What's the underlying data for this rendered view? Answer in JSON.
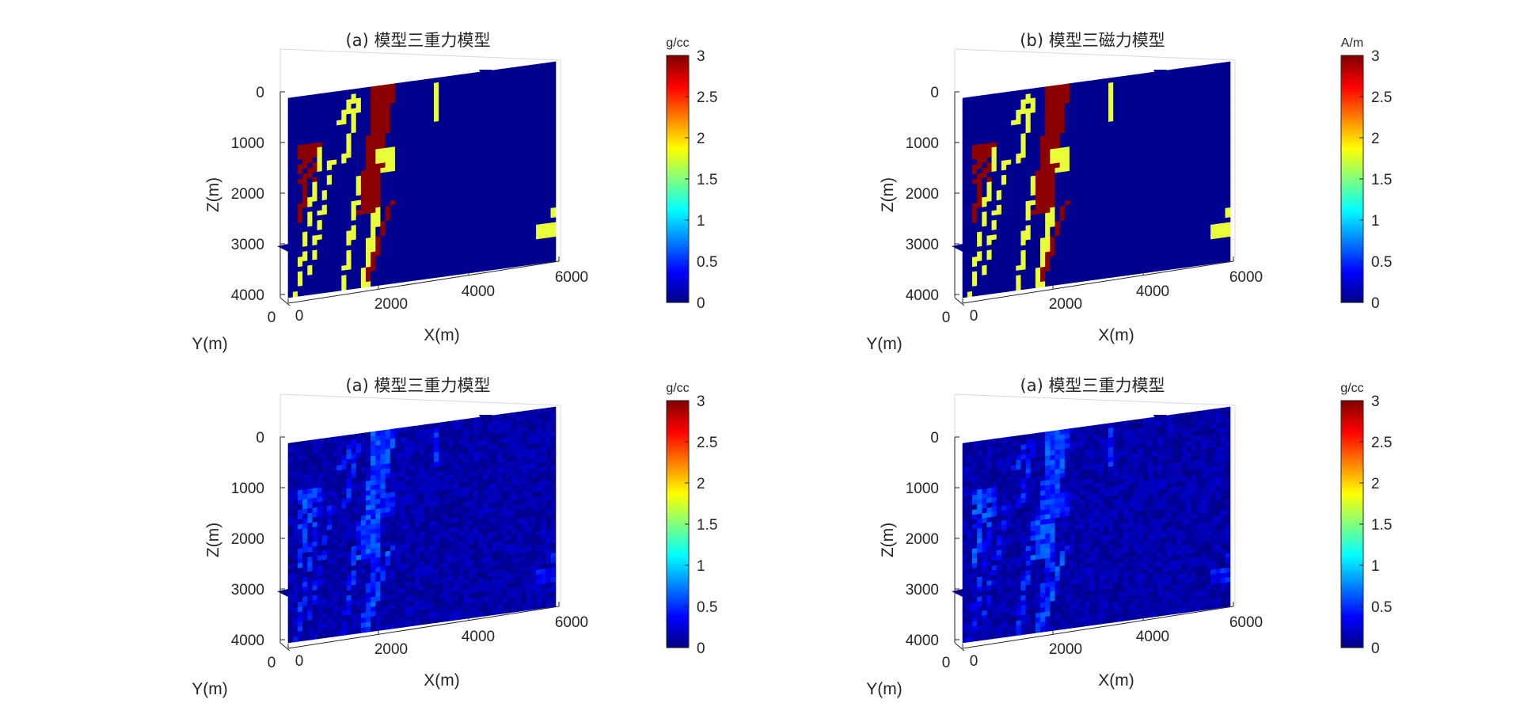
{
  "chart_data": [
    {
      "type": "heatmap",
      "title": "(a) 模型三重力模型",
      "xlabel": "X(m)",
      "ylabel": "Y(m)",
      "zlabel": "Z(m)",
      "x_ticks": [
        "0",
        "2000",
        "4000",
        "6000"
      ],
      "y_ticks": [
        "0"
      ],
      "z_ticks": [
        "0",
        "1000",
        "2000",
        "3000",
        "4000"
      ],
      "colorbar": {
        "label": "g/cc",
        "ticks": [
          "0",
          "0.5",
          "1",
          "1.5",
          "2",
          "2.5",
          "3"
        ],
        "range": [
          0,
          3
        ],
        "colormap": "jet"
      },
      "cell_values": [
        0,
        2,
        3
      ],
      "field": "model"
    },
    {
      "type": "heatmap",
      "title": "(b) 模型三磁力模型",
      "xlabel": "X(m)",
      "ylabel": "Y(m)",
      "zlabel": "Z(m)",
      "x_ticks": [
        "0",
        "2000",
        "4000",
        "6000"
      ],
      "y_ticks": [
        "0"
      ],
      "z_ticks": [
        "0",
        "1000",
        "2000",
        "3000",
        "4000"
      ],
      "colorbar": {
        "label": "A/m",
        "ticks": [
          "0",
          "0.5",
          "1",
          "1.5",
          "2",
          "2.5",
          "3"
        ],
        "range": [
          0,
          3
        ],
        "colormap": "jet"
      },
      "cell_values": [
        0,
        2,
        3
      ],
      "field": "model"
    },
    {
      "type": "heatmap",
      "title": "(a) 模型三重力模型",
      "xlabel": "X(m)",
      "ylabel": "Y(m)",
      "zlabel": "Z(m)",
      "x_ticks": [
        "0",
        "2000",
        "4000",
        "6000"
      ],
      "y_ticks": [
        "0"
      ],
      "z_ticks": [
        "0",
        "1000",
        "2000",
        "3000",
        "4000"
      ],
      "colorbar": {
        "label": "g/cc",
        "ticks": [
          "0",
          "0.5",
          "1",
          "1.5",
          "2",
          "2.5",
          "3"
        ],
        "range": [
          0,
          3
        ],
        "colormap": "jet"
      },
      "field": "inversion"
    },
    {
      "type": "heatmap",
      "title": "(a) 模型三重力模型",
      "xlabel": "X(m)",
      "ylabel": "Y(m)",
      "zlabel": "Z(m)",
      "x_ticks": [
        "0",
        "2000",
        "4000",
        "6000"
      ],
      "y_ticks": [
        "0"
      ],
      "z_ticks": [
        "0",
        "1000",
        "2000",
        "3000",
        "4000"
      ],
      "colorbar": {
        "label": "g/cc",
        "ticks": [
          "0",
          "0.5",
          "1",
          "1.5",
          "2",
          "2.5",
          "3"
        ],
        "range": [
          0,
          3
        ],
        "colormap": "jet"
      },
      "field": "inversion"
    }
  ],
  "colors": {
    "background": "#00008f",
    "yellow": "#e8ff3a",
    "red": "#8b0000",
    "text": "#262626"
  }
}
